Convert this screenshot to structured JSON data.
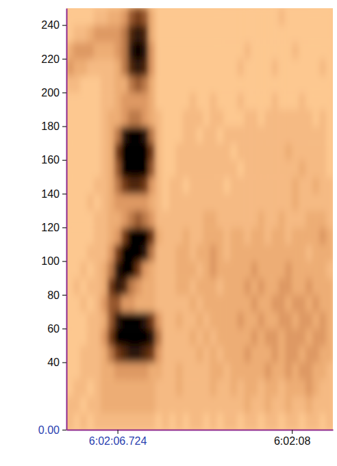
{
  "chart_data": {
    "type": "heatmap",
    "xlim": [
      6.35,
      8.3
    ],
    "ylim": [
      0,
      250
    ],
    "xticks": [
      {
        "value": 6.724,
        "label": "6:02:06.724"
      },
      {
        "value": 8,
        "label": "6:02:08"
      }
    ],
    "yticks": [
      {
        "value": 0,
        "label": "0.00"
      },
      40,
      60,
      80,
      100,
      120,
      140,
      160,
      180,
      200,
      220,
      240
    ],
    "x_edges": [
      6.35,
      6.4,
      6.45,
      6.5,
      6.55,
      6.6,
      6.65,
      6.7,
      6.75,
      6.8,
      6.85,
      6.9,
      6.95,
      7,
      7.05,
      7.1,
      7.15,
      7.2,
      7.25,
      7.3,
      7.35,
      7.4,
      7.45,
      7.5,
      7.55,
      7.6,
      7.65,
      7.7,
      7.75,
      7.8,
      7.85,
      7.9,
      7.95,
      8,
      8.05,
      8.1,
      8.15,
      8.2,
      8.25,
      8.3
    ],
    "y_edges": [
      0,
      10,
      20,
      30,
      40,
      50,
      60,
      70,
      80,
      90,
      100,
      110,
      120,
      130,
      140,
      150,
      160,
      170,
      180,
      190,
      200,
      210,
      220,
      230,
      240,
      250
    ],
    "cells": [
      [
        2,
        1,
        2,
        1,
        2,
        2,
        2,
        2,
        2,
        2,
        2,
        2,
        2,
        1,
        2,
        1,
        2,
        1,
        2,
        2,
        1,
        2,
        1,
        2,
        2,
        1,
        2,
        2,
        1,
        2,
        2,
        1,
        2,
        2,
        1,
        2,
        2,
        1,
        2
      ],
      [
        2,
        2,
        1,
        2,
        2,
        3,
        3,
        3,
        3,
        3,
        3,
        3,
        3,
        2,
        2,
        2,
        2,
        2,
        2,
        2,
        2,
        2,
        2,
        2,
        2,
        2,
        3,
        2,
        2,
        3,
        2,
        2,
        3,
        2,
        2,
        3,
        2,
        2,
        2
      ],
      [
        1,
        2,
        2,
        1,
        2,
        3,
        3,
        3,
        3,
        3,
        3,
        3,
        3,
        2,
        2,
        2,
        3,
        2,
        2,
        2,
        2,
        3,
        2,
        2,
        3,
        2,
        3,
        3,
        2,
        3,
        3,
        2,
        3,
        3,
        3,
        4,
        3,
        2,
        2
      ],
      [
        1,
        1,
        2,
        2,
        2,
        3,
        3,
        4,
        4,
        4,
        4,
        4,
        3,
        3,
        2,
        2,
        3,
        2,
        2,
        2,
        2,
        3,
        3,
        2,
        3,
        3,
        3,
        3,
        3,
        4,
        3,
        3,
        4,
        3,
        4,
        4,
        3,
        3,
        2
      ],
      [
        1,
        1,
        2,
        2,
        2,
        3,
        5,
        7,
        8,
        9,
        9,
        8,
        7,
        4,
        2,
        2,
        2,
        2,
        2,
        3,
        2,
        3,
        2,
        3,
        3,
        3,
        4,
        3,
        3,
        3,
        4,
        3,
        4,
        4,
        3,
        4,
        4,
        3,
        3
      ],
      [
        1,
        1,
        1,
        2,
        2,
        4,
        7,
        10,
        10,
        10,
        10,
        10,
        9,
        5,
        2,
        2,
        2,
        2,
        3,
        2,
        3,
        2,
        3,
        3,
        3,
        3,
        3,
        4,
        3,
        4,
        4,
        3,
        4,
        4,
        4,
        3,
        4,
        4,
        3
      ],
      [
        1,
        1,
        1,
        2,
        2,
        3,
        6,
        9,
        10,
        10,
        10,
        9,
        7,
        4,
        2,
        2,
        3,
        2,
        2,
        3,
        2,
        3,
        3,
        3,
        3,
        4,
        3,
        3,
        4,
        3,
        3,
        4,
        4,
        3,
        4,
        4,
        3,
        4,
        3
      ],
      [
        1,
        1,
        2,
        1,
        2,
        4,
        6,
        6,
        4,
        4,
        3,
        3,
        3,
        2,
        2,
        2,
        2,
        2,
        3,
        2,
        3,
        3,
        3,
        3,
        3,
        3,
        3,
        4,
        3,
        3,
        4,
        4,
        3,
        4,
        4,
        3,
        4,
        3,
        3
      ],
      [
        1,
        2,
        1,
        2,
        2,
        3,
        7,
        9,
        8,
        5,
        4,
        3,
        3,
        2,
        2,
        2,
        3,
        3,
        2,
        3,
        3,
        3,
        2,
        3,
        3,
        3,
        4,
        3,
        4,
        3,
        3,
        4,
        4,
        3,
        3,
        4,
        3,
        3,
        3
      ],
      [
        1,
        1,
        2,
        1,
        2,
        3,
        5,
        9,
        10,
        10,
        7,
        4,
        3,
        2,
        2,
        2,
        3,
        3,
        3,
        2,
        3,
        4,
        3,
        3,
        3,
        3,
        3,
        4,
        3,
        3,
        3,
        3,
        4,
        3,
        3,
        3,
        3,
        3,
        2
      ],
      [
        1,
        1,
        1,
        2,
        2,
        2,
        4,
        7,
        10,
        10,
        10,
        9,
        5,
        2,
        2,
        2,
        3,
        3,
        2,
        3,
        3,
        4,
        3,
        2,
        3,
        3,
        3,
        3,
        3,
        3,
        3,
        3,
        3,
        3,
        3,
        2,
        3,
        3,
        3
      ],
      [
        1,
        1,
        1,
        1,
        2,
        2,
        3,
        4,
        7,
        10,
        10,
        10,
        7,
        3,
        2,
        2,
        2,
        3,
        2,
        2,
        3,
        3,
        3,
        2,
        3,
        3,
        2,
        3,
        3,
        2,
        3,
        3,
        2,
        3,
        3,
        3,
        3,
        4,
        3
      ],
      [
        1,
        1,
        1,
        1,
        2,
        2,
        3,
        3,
        4,
        5,
        6,
        5,
        4,
        2,
        2,
        2,
        2,
        2,
        2,
        2,
        3,
        3,
        2,
        2,
        2,
        2,
        2,
        2,
        3,
        2,
        2,
        3,
        2,
        2,
        2,
        3,
        3,
        3,
        2
      ],
      [
        1,
        1,
        1,
        2,
        1,
        2,
        3,
        4,
        4,
        4,
        4,
        4,
        3,
        2,
        1,
        2,
        2,
        2,
        2,
        2,
        2,
        2,
        2,
        2,
        2,
        2,
        2,
        2,
        2,
        2,
        2,
        2,
        2,
        3,
        2,
        2,
        2,
        2,
        2
      ],
      [
        1,
        1,
        1,
        1,
        2,
        2,
        3,
        5,
        7,
        8,
        8,
        7,
        4,
        2,
        1,
        2,
        2,
        1,
        2,
        2,
        2,
        2,
        2,
        1,
        2,
        2,
        2,
        2,
        2,
        2,
        2,
        2,
        2,
        3,
        2,
        2,
        3,
        2,
        2
      ],
      [
        1,
        1,
        1,
        1,
        1,
        2,
        3,
        6,
        10,
        10,
        10,
        10,
        6,
        2,
        1,
        1,
        2,
        2,
        2,
        2,
        2,
        2,
        2,
        2,
        2,
        1,
        2,
        2,
        2,
        2,
        2,
        2,
        2,
        2,
        3,
        2,
        2,
        2,
        1
      ],
      [
        1,
        1,
        1,
        1,
        1,
        2,
        3,
        7,
        10,
        10,
        10,
        10,
        7,
        2,
        1,
        1,
        2,
        2,
        2,
        2,
        2,
        2,
        2,
        2,
        1,
        2,
        2,
        2,
        2,
        2,
        2,
        2,
        3,
        2,
        2,
        2,
        2,
        2,
        1
      ],
      [
        1,
        1,
        1,
        1,
        1,
        2,
        3,
        5,
        9,
        10,
        10,
        9,
        5,
        2,
        1,
        1,
        1,
        2,
        2,
        1,
        2,
        2,
        1,
        2,
        2,
        2,
        2,
        2,
        2,
        2,
        2,
        2,
        2,
        2,
        2,
        2,
        2,
        2,
        1
      ],
      [
        1,
        1,
        1,
        1,
        1,
        2,
        3,
        3,
        4,
        5,
        5,
        4,
        3,
        2,
        1,
        1,
        1,
        2,
        2,
        2,
        1,
        2,
        2,
        1,
        1,
        1,
        2,
        2,
        1,
        2,
        2,
        2,
        2,
        2,
        2,
        2,
        1,
        2,
        1
      ],
      [
        1,
        1,
        1,
        1,
        1,
        2,
        2,
        3,
        4,
        4,
        4,
        4,
        3,
        1,
        1,
        1,
        1,
        1,
        2,
        1,
        1,
        2,
        1,
        1,
        1,
        2,
        1,
        1,
        1,
        1,
        2,
        1,
        1,
        1,
        2,
        1,
        1,
        1,
        1
      ],
      [
        2,
        2,
        1,
        1,
        1,
        2,
        2,
        3,
        3,
        5,
        6,
        5,
        3,
        1,
        1,
        1,
        1,
        1,
        1,
        1,
        1,
        1,
        1,
        1,
        1,
        1,
        1,
        1,
        1,
        1,
        1,
        1,
        1,
        1,
        1,
        1,
        1,
        1,
        1
      ],
      [
        4,
        3,
        3,
        2,
        2,
        2,
        2,
        3,
        5,
        8,
        9,
        8,
        4,
        1,
        1,
        1,
        1,
        1,
        1,
        1,
        1,
        1,
        1,
        1,
        1,
        2,
        1,
        1,
        1,
        1,
        2,
        1,
        1,
        1,
        1,
        1,
        1,
        2,
        1
      ],
      [
        3,
        4,
        4,
        4,
        3,
        3,
        3,
        4,
        5,
        9,
        10,
        9,
        4,
        1,
        1,
        1,
        1,
        1,
        1,
        1,
        1,
        1,
        1,
        1,
        1,
        1,
        2,
        1,
        1,
        1,
        1,
        1,
        1,
        2,
        1,
        1,
        1,
        1,
        1
      ],
      [
        1,
        2,
        2,
        3,
        4,
        4,
        4,
        4,
        5,
        8,
        9,
        8,
        3,
        1,
        1,
        1,
        1,
        1,
        1,
        1,
        1,
        1,
        1,
        1,
        1,
        1,
        1,
        1,
        1,
        1,
        1,
        1,
        1,
        1,
        1,
        1,
        1,
        1,
        1
      ],
      [
        1,
        1,
        1,
        1,
        2,
        2,
        3,
        3,
        4,
        6,
        7,
        6,
        3,
        1,
        1,
        1,
        1,
        1,
        1,
        1,
        1,
        1,
        1,
        1,
        1,
        1,
        1,
        1,
        1,
        1,
        1,
        2,
        1,
        1,
        1,
        1,
        1,
        1,
        1
      ]
    ]
  }
}
